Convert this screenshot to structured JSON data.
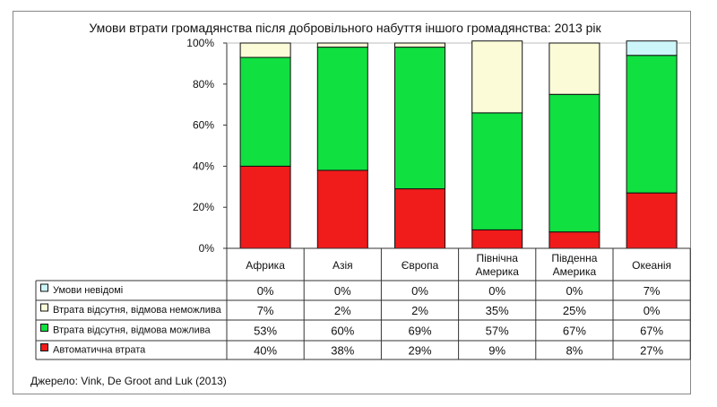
{
  "chart_data": {
    "type": "bar",
    "stacked": true,
    "title": "Умови втрати громадянства після добровільного набуття іншого громадянства: 2013 рік",
    "categories": [
      [
        "Африка"
      ],
      [
        "Азія"
      ],
      [
        "Європа"
      ],
      [
        "Північна",
        "Америка"
      ],
      [
        "Південна",
        "Америка"
      ],
      [
        "Океанія"
      ]
    ],
    "ylim": [
      0,
      100
    ],
    "yticks": [
      "0%",
      "20%",
      "40%",
      "60%",
      "80%",
      "100%"
    ],
    "series": [
      {
        "name": "Умови невідомі",
        "color": "#ccf6fa",
        "values": [
          0,
          0,
          0,
          0,
          0,
          7
        ]
      },
      {
        "name": "Втрата відсутня, відмова неможлива",
        "color": "#fcfbd8",
        "values": [
          7,
          2,
          2,
          35,
          25,
          0
        ]
      },
      {
        "name": "Втрата відсутня, відмова можлива",
        "color": "#10e040",
        "values": [
          53,
          60,
          69,
          57,
          67,
          67
        ]
      },
      {
        "name": "Автоматична втрата",
        "color": "#f01b1b",
        "values": [
          40,
          38,
          29,
          9,
          8,
          27
        ]
      }
    ],
    "legend": "table-left",
    "source": "Джерело: Vink, De Groot and Luk (2013)"
  }
}
